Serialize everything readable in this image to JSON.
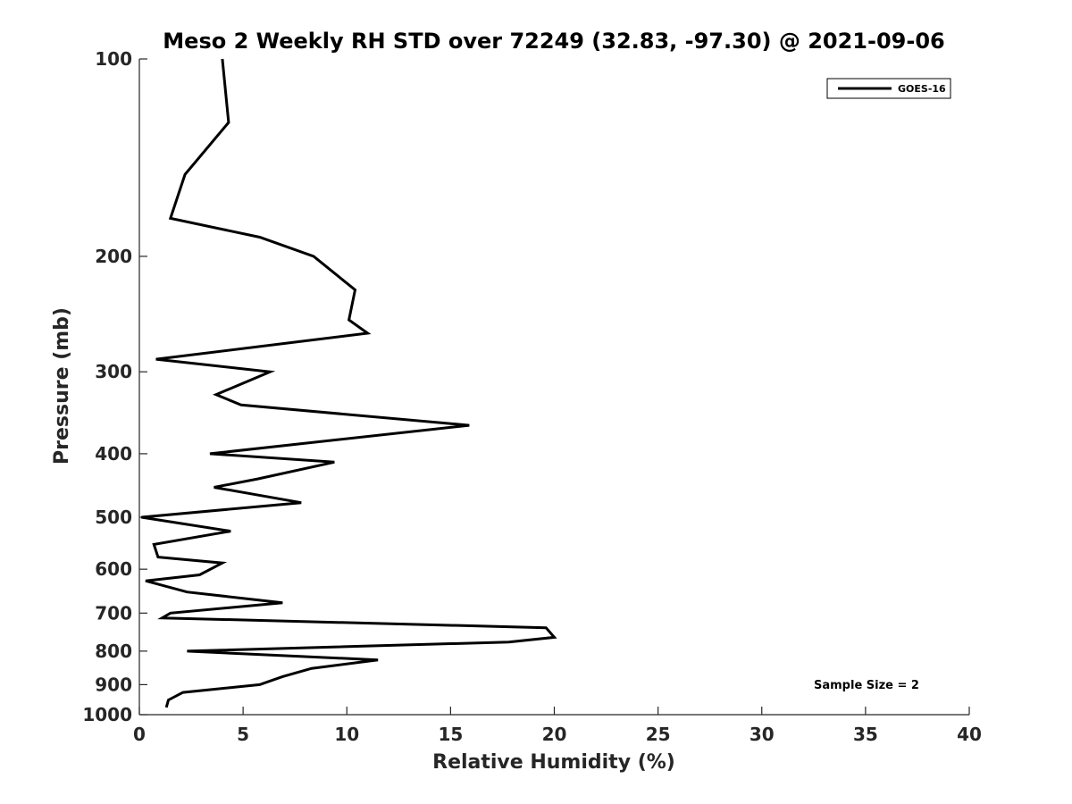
{
  "chart_data": {
    "type": "line",
    "title": "Meso 2 Weekly RH STD over 72249 (32.83, -97.30) @ 2021-09-06",
    "xlabel": "Relative Humidity (%)",
    "ylabel": "Pressure (mb)",
    "xlim": [
      0,
      40
    ],
    "ylim": [
      1000,
      100
    ],
    "yscale": "log",
    "y_reversed": true,
    "xticks": [
      0,
      5,
      10,
      15,
      20,
      25,
      30,
      35,
      40
    ],
    "yticks": [
      100,
      200,
      300,
      400,
      500,
      600,
      700,
      800,
      900,
      1000
    ],
    "legend_position": "top-right",
    "annotation": "Sample Size = 2",
    "series": [
      {
        "name": "GOES-16",
        "color": "#000000",
        "x": [
          4.0,
          4.3,
          2.2,
          1.5,
          5.8,
          8.4,
          10.4,
          10.1,
          11.0,
          0.8,
          6.3,
          3.7,
          4.9,
          15.9,
          3.4,
          9.4,
          5.7,
          3.6,
          7.8,
          0.1,
          4.4,
          0.7,
          0.9,
          4.0,
          2.9,
          0.3,
          2.3,
          6.9,
          1.5,
          1.1,
          19.6,
          20.0,
          17.8,
          2.3,
          11.5,
          8.3,
          6.9,
          5.8,
          2.1,
          1.4,
          1.3
        ],
        "y": [
          100,
          125,
          150,
          175,
          187,
          200,
          225,
          250,
          262,
          287,
          300,
          325,
          337,
          362,
          400,
          412,
          437,
          450,
          475,
          500,
          525,
          550,
          575,
          587,
          612,
          625,
          650,
          675,
          700,
          712,
          737,
          762,
          775,
          800,
          825,
          850,
          875,
          900,
          925,
          950,
          975
        ]
      }
    ]
  }
}
